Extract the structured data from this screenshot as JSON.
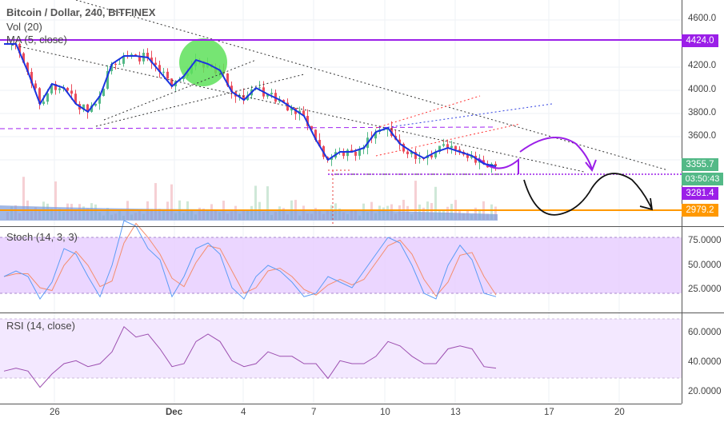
{
  "header": {
    "title": "Bitcoin / Dollar, 240, BITFINEX",
    "vol": "Vol (20)",
    "ma": "MA (5, close)"
  },
  "colors": {
    "up": "#53b987",
    "down": "#eb4d5c",
    "ma": "#1b34e0",
    "stoch_k": "#5b9cf6",
    "stoch_d": "#f58d6d",
    "rsi": "#9c4fb0",
    "level_purple": "#9b1fe8",
    "level_orange": "#ff9800"
  },
  "price_axis": {
    "ticks": [
      "4600.0",
      "4200.0",
      "4000.0",
      "3800.0",
      "3600.0"
    ]
  },
  "price_tags": {
    "level_high": "4424.0",
    "last": "3355.7",
    "countdown": "03:50:43",
    "level_mid": "3281.4",
    "level_low": "2979.2"
  },
  "stoch": {
    "title": "Stoch (14, 3, 3)",
    "ticks": [
      "75.0000",
      "50.0000",
      "25.0000"
    ]
  },
  "rsi": {
    "title": "RSI (14, close)",
    "ticks": [
      "60.0000",
      "40.0000",
      "20.0000"
    ]
  },
  "time_axis": {
    "ticks": [
      "26",
      "Dec",
      "4",
      "7",
      "10",
      "13",
      "17",
      "20"
    ]
  },
  "chart_data": {
    "type": "candlestick",
    "title": "Bitcoin / Dollar, 240, BITFINEX",
    "interval": "12h sampled",
    "ylim": [
      2750,
      4750
    ],
    "close": [
      4394,
      4394,
      4153,
      3878,
      4050,
      4016,
      3878,
      3810,
      3947,
      4222,
      4291,
      4291,
      4277,
      4153,
      4030,
      4119,
      4256,
      4222,
      4167,
      3981,
      3912,
      4016,
      3961,
      3912,
      3844,
      3775,
      3569,
      3397,
      3466,
      3466,
      3500,
      3638,
      3672,
      3535,
      3466,
      3411,
      3466,
      3500,
      3466,
      3432,
      3363,
      3342
    ],
    "levels": [
      4424.0,
      3281.4,
      2979.2
    ],
    "stoch_k": [
      40,
      45,
      40,
      20,
      35,
      65,
      60,
      40,
      22,
      50,
      90,
      85,
      65,
      55,
      22,
      40,
      65,
      70,
      60,
      30,
      20,
      40,
      50,
      45,
      35,
      22,
      25,
      40,
      35,
      30,
      45,
      60,
      75,
      70,
      50,
      25,
      20,
      50,
      68,
      55,
      25,
      22
    ],
    "stoch_ylim": [
      0,
      100
    ],
    "rsi": [
      35,
      37,
      35,
      24,
      33,
      40,
      42,
      38,
      40,
      48,
      65,
      58,
      60,
      50,
      38,
      40,
      55,
      60,
      55,
      42,
      38,
      40,
      48,
      45,
      45,
      40,
      40,
      30,
      42,
      40,
      40,
      45,
      55,
      52,
      45,
      40,
      40,
      50,
      52,
      50,
      38,
      37
    ],
    "rsi_ylim": [
      12,
      72
    ]
  }
}
